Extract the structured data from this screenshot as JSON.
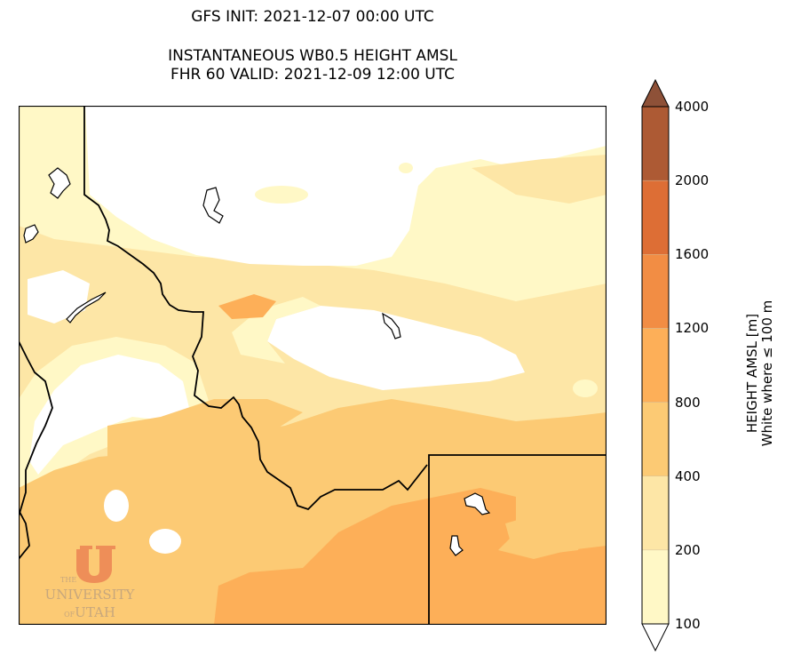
{
  "titles": {
    "line1": "GFS INIT: 2021-12-07 00:00 UTC",
    "line2": "INSTANTANEOUS WB0.5 HEIGHT AMSL",
    "line3": "FHR 60 VALID: 2021-12-09 12:00 UTC"
  },
  "colorbar": {
    "label_line1": "HEIGHT AMSL [m]",
    "label_line2": "White where ≤ 100 m",
    "levels": [
      {
        "value": "100",
        "color": "#fff8c6"
      },
      {
        "value": "200",
        "color": "#fde6a6"
      },
      {
        "value": "400",
        "color": "#fcca74"
      },
      {
        "value": "800",
        "color": "#fdaf58"
      },
      {
        "value": "1200",
        "color": "#f28d44"
      },
      {
        "value": "1600",
        "color": "#dd6e35"
      },
      {
        "value": "2000",
        "color": "#ad5a34"
      },
      {
        "value": "4000",
        "color": "#8e5138"
      }
    ]
  },
  "logo": {
    "line1": "THE",
    "line2": "UNIVERSITY",
    "line3": "OF",
    "line4": "UTAH"
  },
  "colors": {
    "white": "#ffffff",
    "level_100": "#fff8c6",
    "level_200": "#fde6a6",
    "level_400": "#fcca74",
    "level_800": "#fdaf58",
    "logo": "#e9774e"
  }
}
